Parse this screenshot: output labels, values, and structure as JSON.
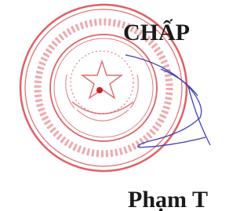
{
  "header": {
    "title": "CHẤP"
  },
  "signer": {
    "name": "Phạm T"
  }
}
